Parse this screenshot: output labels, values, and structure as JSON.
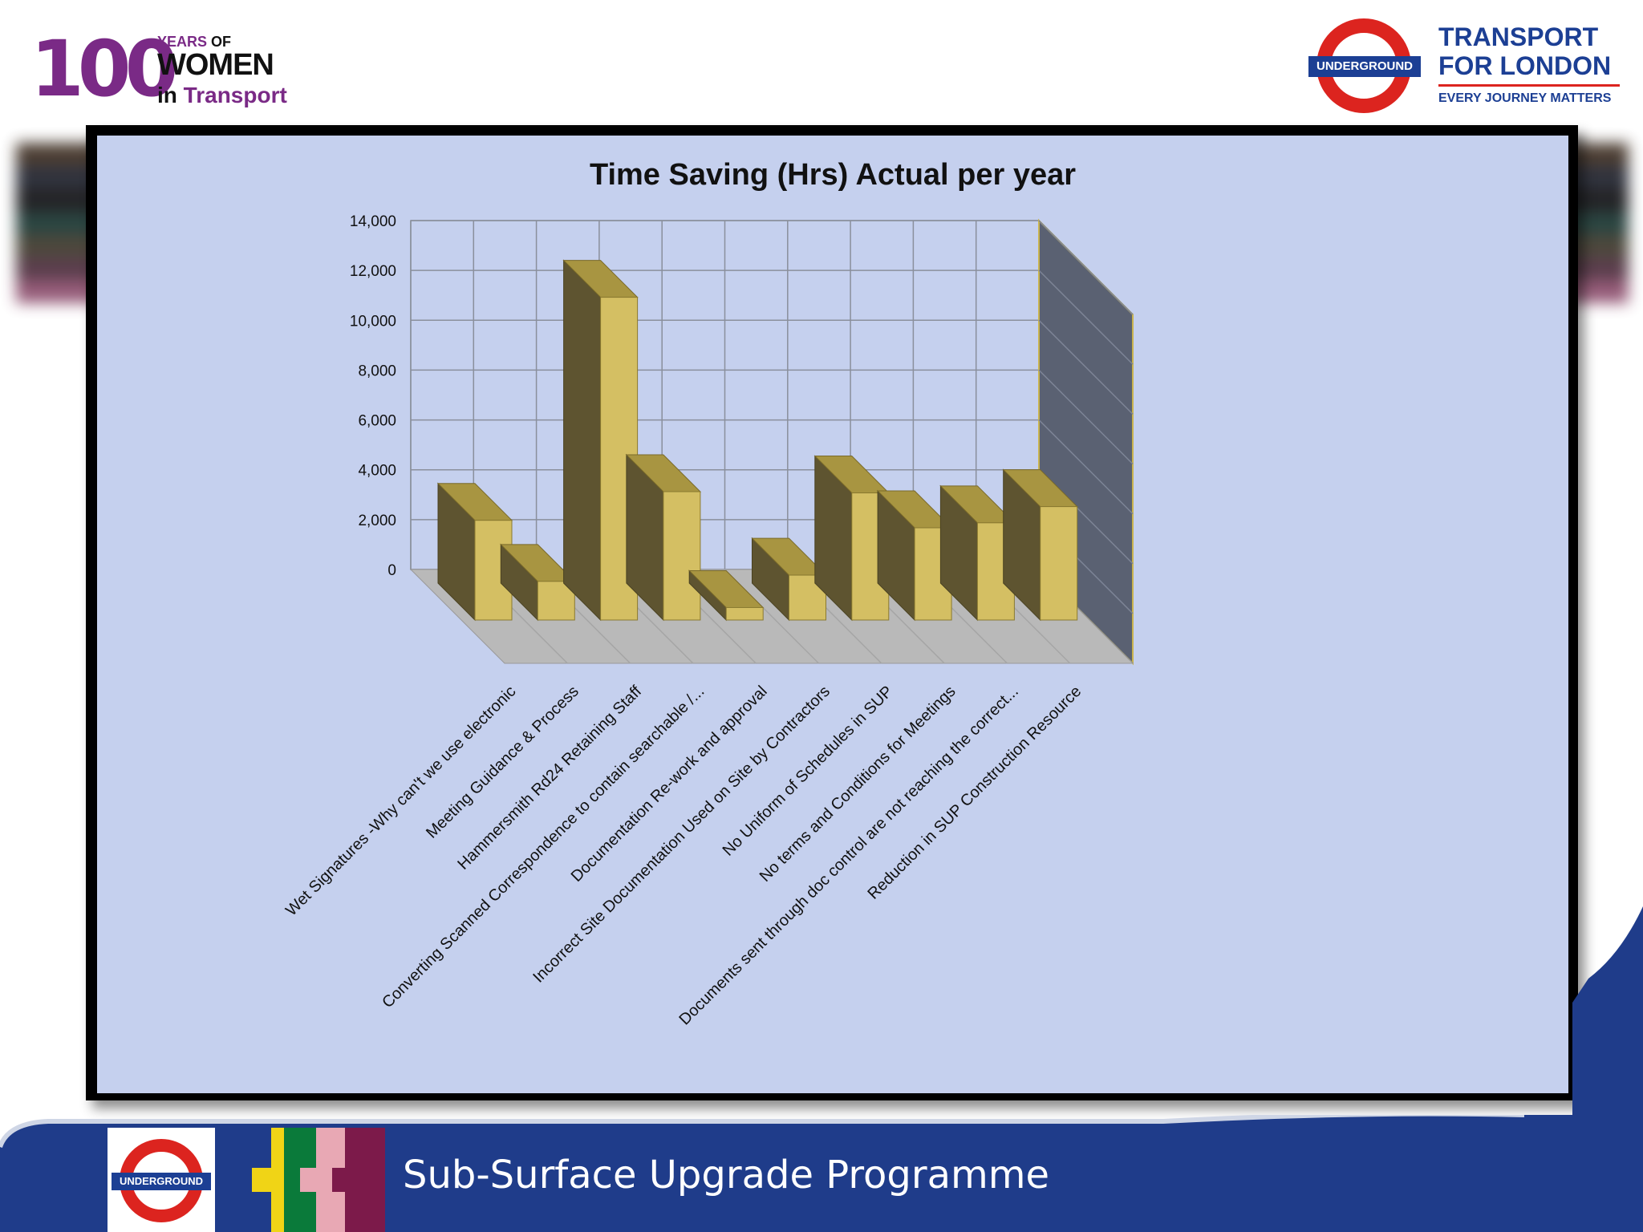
{
  "branding": {
    "wit_100": "100",
    "wit_years": "YEARS",
    "wit_of": "OF",
    "wit_women": "WOMEN",
    "wit_in": "in",
    "wit_transport": "Transport",
    "tfl_line1": "TRANSPORT",
    "tfl_line2": "FOR LONDON",
    "tfl_tagline": "EVERY JOURNEY MATTERS",
    "roundel_label": "UNDERGROUND",
    "footer_roundel_label": "UNDERGROUND"
  },
  "footer": {
    "title": "Sub-Surface Upgrade Programme"
  },
  "colors": {
    "tfl_blue": "#1c3f94",
    "tfl_red": "#dc241f",
    "wit_purple": "#7a2a86",
    "chart_background": "#c5d0ee",
    "bar_front": "#d4bf63",
    "bar_side": "#5e5430",
    "bar_top": "#a89541",
    "floor": "#b9b9b9",
    "side_wall": "#5a6172"
  },
  "chart_data": {
    "type": "bar",
    "style": "3d",
    "title": "Time Saving (Hrs)  Actual per year",
    "xlabel": "",
    "ylabel": "",
    "ylim": [
      0,
      14000
    ],
    "yticks": [
      "0",
      "2,000",
      "4,000",
      "6,000",
      "8,000",
      "10,000",
      "12,000",
      "14,000"
    ],
    "grid": true,
    "legend": "none",
    "categories": [
      "Wet Signatures -Why can't we use electronic",
      "Meeting Guidance & Process",
      "Hammersmith Rd24 Retaining Staff",
      "Converting Scanned Correspondence to contain searchable /...",
      "Documentation Re-work and approval",
      "Incorrect Site Documentation Used on Site by Contractors",
      "No Uniform of Schedules in SUP",
      "No terms and Conditions for Meetings",
      "Documents sent through doc control are not reaching the correct...",
      "Reduction in SUP Construction Resource"
    ],
    "values": [
      4000,
      1550,
      12950,
      5150,
      500,
      1800,
      5100,
      3700,
      3900,
      4550
    ]
  }
}
